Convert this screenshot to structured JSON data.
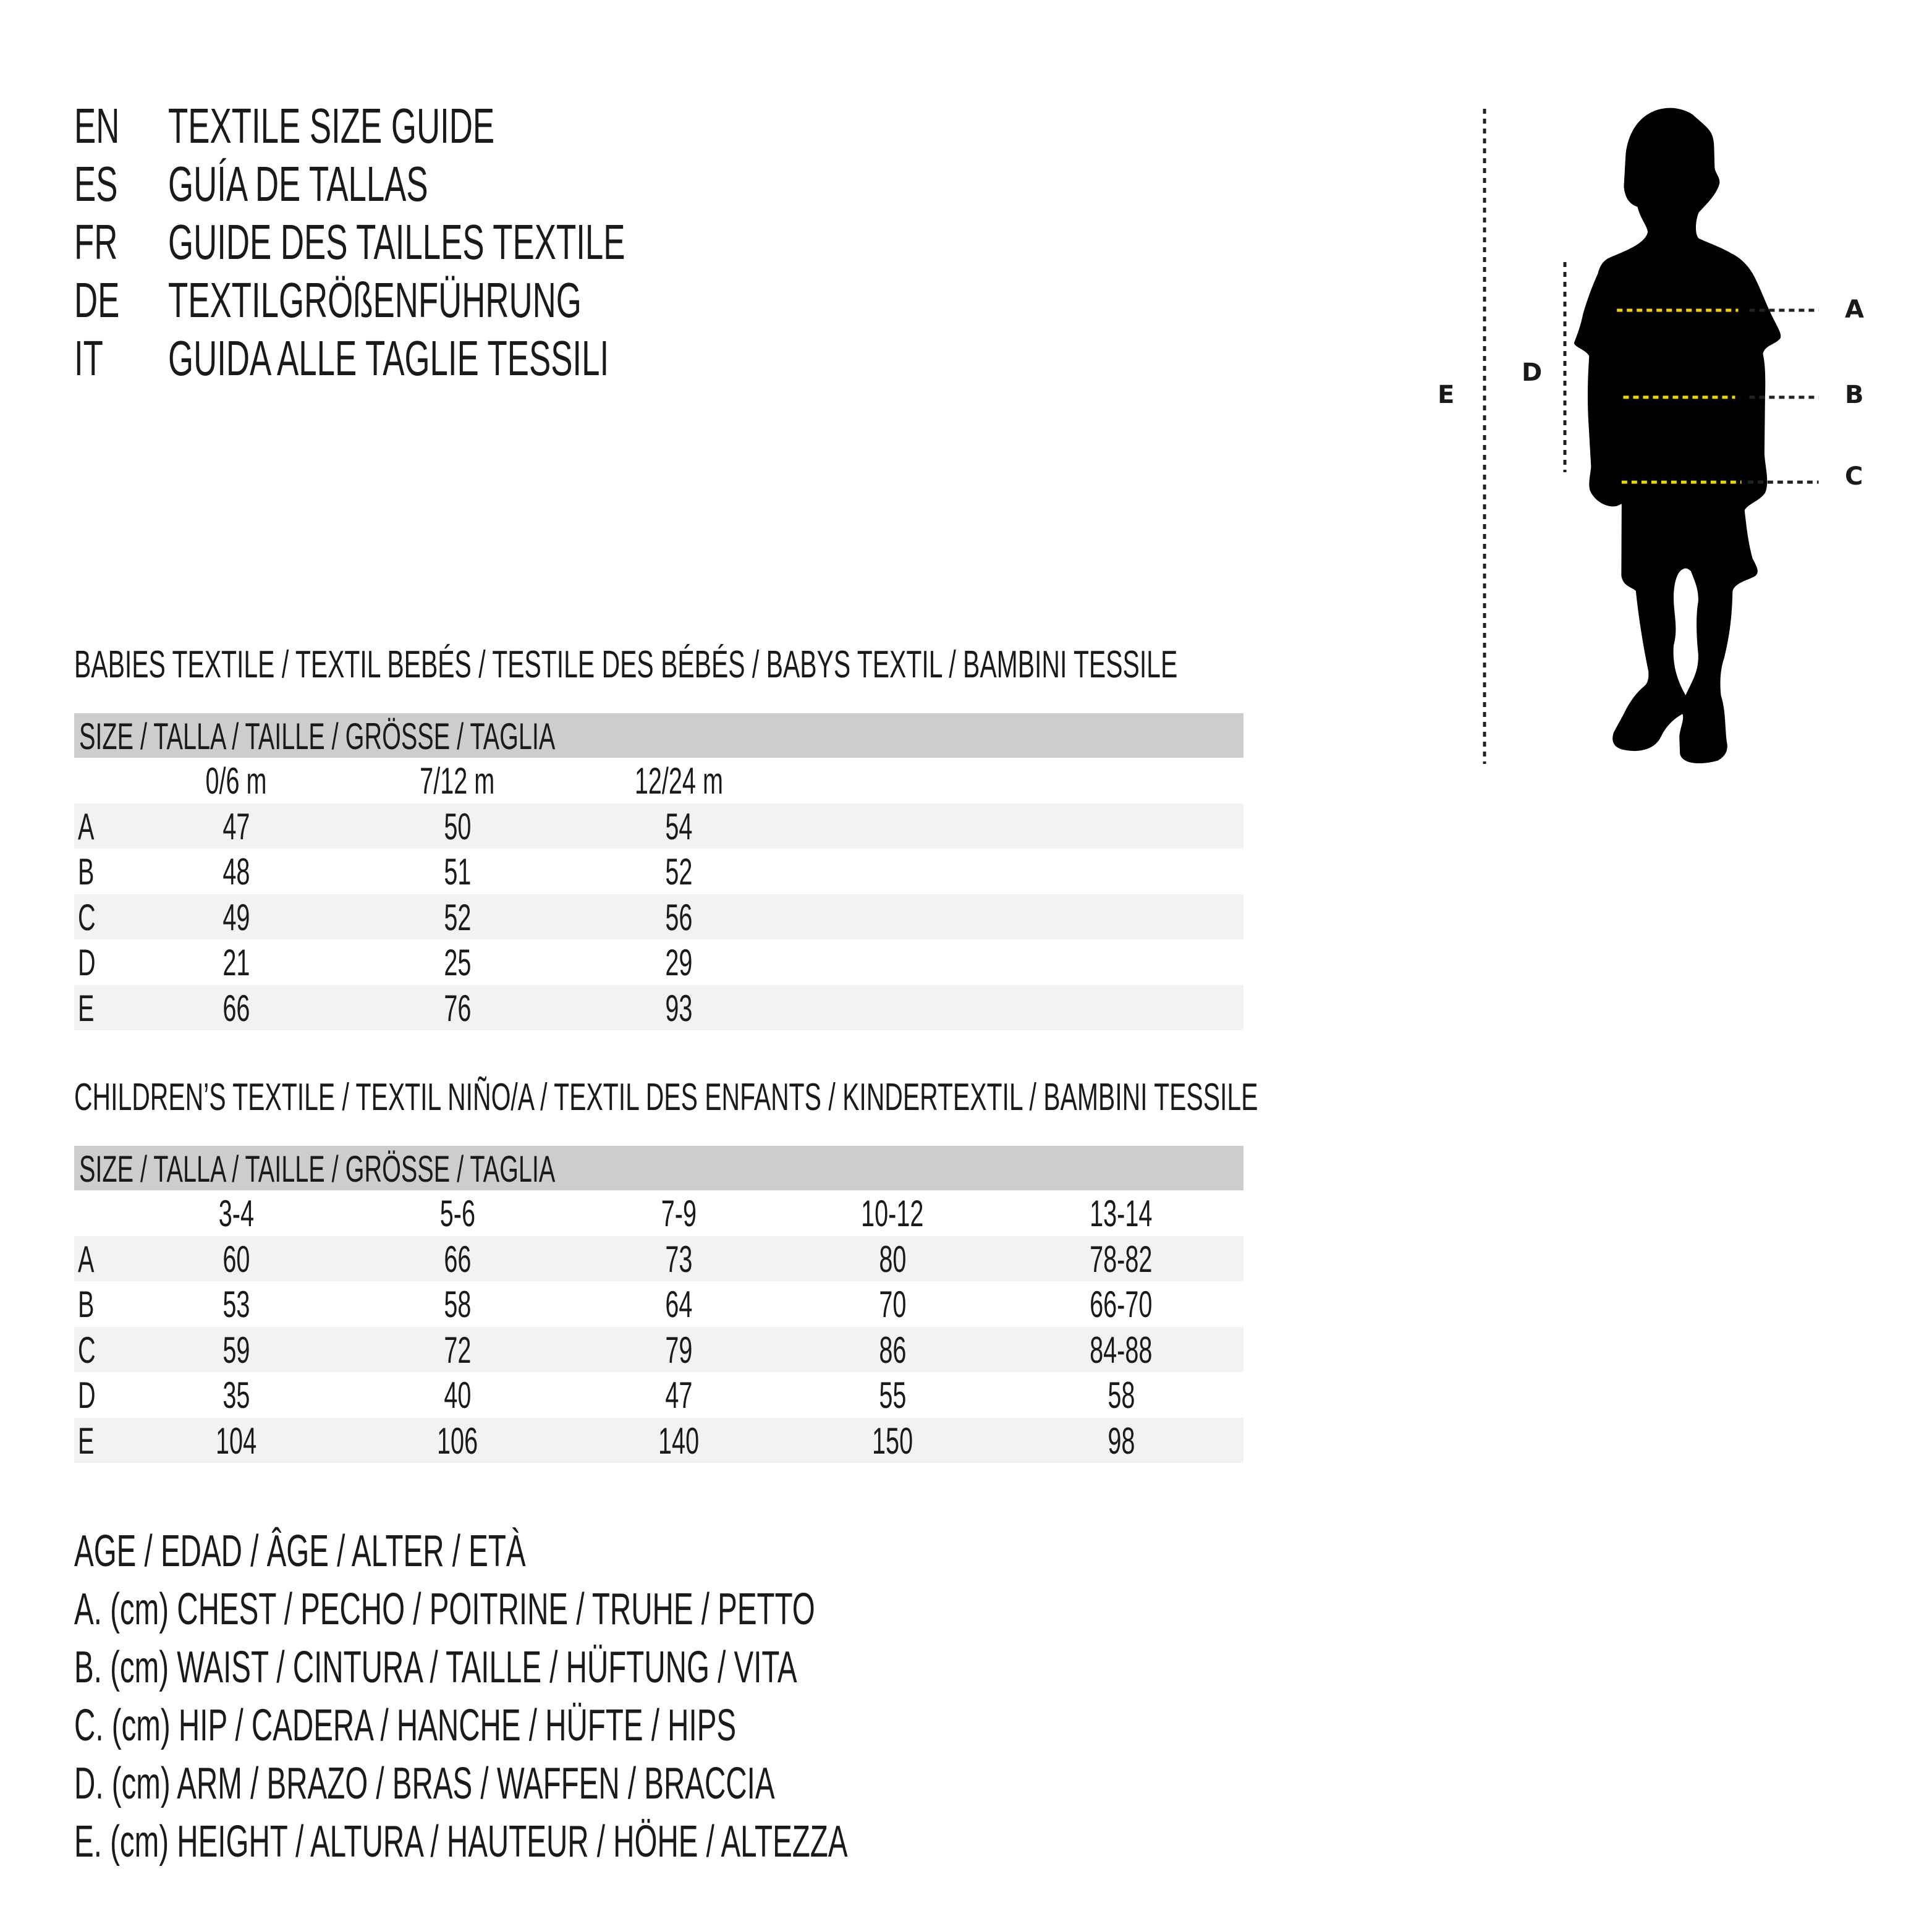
{
  "titles": [
    {
      "code": "EN",
      "text": "TEXTILE SIZE GUIDE"
    },
    {
      "code": "ES",
      "text": "GUÍA DE TALLAS"
    },
    {
      "code": "FR",
      "text": "GUIDE DES TAILLES TEXTILE"
    },
    {
      "code": "DE",
      "text": "TEXTILGRÖßENFÜHRUNG"
    },
    {
      "code": "IT",
      "text": "GUIDA ALLE TAGLIE TESSILI"
    }
  ],
  "babies": {
    "heading": "BABIES TEXTILE / TEXTIL BEBÉS / TESTILE DES BÉBÉS / BABYS TEXTIL / BAMBINI TESSILE",
    "size_label": "SIZE / TALLA / TAILLE / GRÖSSE / TAGLIA",
    "columns": [
      "0/6 m",
      "7/12 m",
      "12/24 m"
    ],
    "rows": [
      {
        "label": "A",
        "values": [
          "47",
          "50",
          "54"
        ]
      },
      {
        "label": "B",
        "values": [
          "48",
          "51",
          "52"
        ]
      },
      {
        "label": "C",
        "values": [
          "49",
          "52",
          "56"
        ]
      },
      {
        "label": "D",
        "values": [
          "21",
          "25",
          "29"
        ]
      },
      {
        "label": "E",
        "values": [
          "66",
          "76",
          "93"
        ]
      }
    ]
  },
  "children": {
    "heading": "CHILDREN’S TEXTILE / TEXTIL NIÑO/A / TEXTIL DES ENFANTS / KINDERTEXTIL / BAMBINI TESSILE",
    "size_label": "SIZE / TALLA / TAILLE / GRÖSSE / TAGLIA",
    "columns": [
      "3-4",
      "5-6",
      "7-9",
      "10-12",
      "13-14"
    ],
    "rows": [
      {
        "label": "A",
        "values": [
          "60",
          "66",
          "73",
          "80",
          "78-82"
        ]
      },
      {
        "label": "B",
        "values": [
          "53",
          "58",
          "64",
          "70",
          "66-70"
        ]
      },
      {
        "label": "C",
        "values": [
          "59",
          "72",
          "79",
          "86",
          "84-88"
        ]
      },
      {
        "label": "D",
        "values": [
          "35",
          "40",
          "47",
          "55",
          "58"
        ]
      },
      {
        "label": "E",
        "values": [
          "104",
          "106",
          "140",
          "150",
          "98"
        ]
      }
    ]
  },
  "legend": [
    "AGE / EDAD / ÂGE / ALTER / ETÀ",
    "A. (cm) CHEST / PECHO / POITRINE / TRUHE / PETTO",
    "B. (cm) WAIST / CINTURA / TAILLE / HÜFTUNG / VITA",
    "C. (cm) HIP / CADERA / HANCHE / HÜFTE / HIPS",
    "D. (cm) ARM / BRAZO / BRAS / WAFFEN / BRACCIA",
    "E. (cm) HEIGHT / ALTURA / HAUTEUR / HÖHE / ALTEZZA"
  ],
  "figure": {
    "labels": {
      "a": "A",
      "b": "B",
      "c": "C",
      "d": "D",
      "e": "E"
    },
    "icon": "child-silhouette-icon",
    "colors": {
      "marker_line": "#f0d400",
      "dotted_line": "#222222",
      "header_bar": "#cdcdcf",
      "row_shade": "#f2f2f2"
    }
  }
}
